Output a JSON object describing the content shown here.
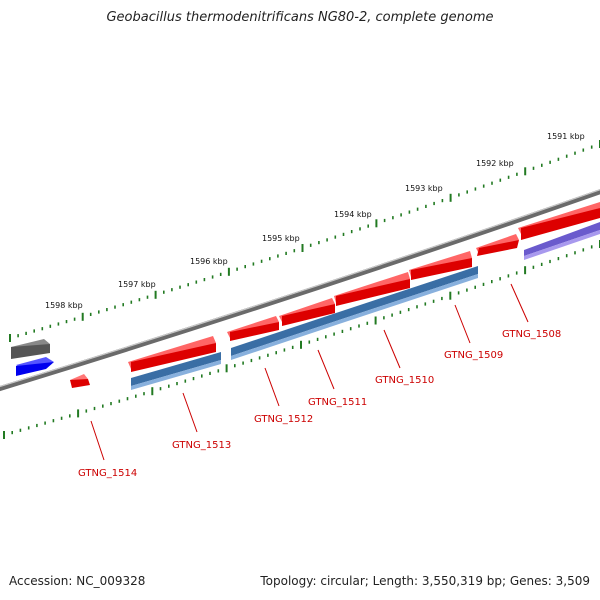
{
  "title": "Geobacillus thermodenitrificans NG80-2, complete genome",
  "footer": {
    "accession": "Accession: NC_009328",
    "summary": "Topology: circular; Length: 3,550,319 bp; Genes: 3,509"
  },
  "scale_labels": [
    "1591 kbp",
    "1592 kbp",
    "1593 kbp",
    "1594 kbp",
    "1595 kbp",
    "1596 kbp",
    "1597 kbp",
    "1598 kbp"
  ],
  "gene_labels": [
    "GTNG_1508",
    "GTNG_1509",
    "GTNG_1510",
    "GTNG_1511",
    "GTNG_1512",
    "GTNG_1513",
    "GTNG_1514"
  ],
  "colors": {
    "cds_red": "#ee0000",
    "cds_blue": "#4a7fb5",
    "cds_violet": "#6f63cc",
    "feature_gray": "#555555",
    "feature_blue": "#0000ee",
    "backbone": "#777777",
    "tick": "#227a22",
    "label_red": "#cc0000"
  }
}
